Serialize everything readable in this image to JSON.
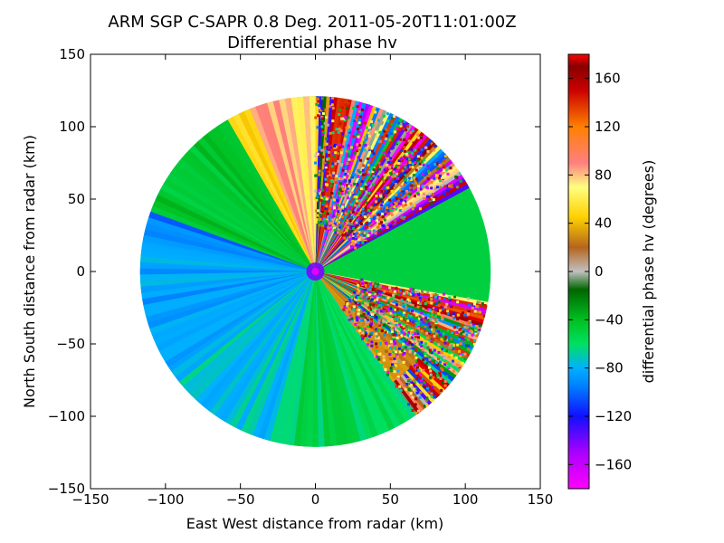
{
  "chart_data": {
    "type": "heatmap",
    "title": "ARM SGP C-SAPR 0.8 Deg. 2011-05-20T11:01:00Z",
    "subtitle": "Differential phase hv",
    "xlabel": "East West distance from radar (km)",
    "ylabel": "North South distance from radar (km)",
    "xlim": [
      -150,
      150
    ],
    "ylim": [
      -150,
      150
    ],
    "x_ticks": [
      -150,
      -100,
      -50,
      0,
      50,
      100,
      150
    ],
    "y_ticks": [
      -150,
      -100,
      -50,
      0,
      50,
      100,
      150
    ],
    "x_tick_labels": [
      "−150",
      "−100",
      "−50",
      "0",
      "50",
      "100",
      "150"
    ],
    "y_tick_labels": [
      "−150",
      "−100",
      "−50",
      "0",
      "50",
      "100",
      "150"
    ],
    "max_range_km": 117,
    "grid": false,
    "colorbar": {
      "label": "differential phase hv (degrees)",
      "range": [
        -180,
        180
      ],
      "ticks": [
        -160,
        -120,
        -80,
        -40,
        0,
        40,
        80,
        120,
        160
      ],
      "tick_labels": [
        "−160",
        "−120",
        "−80",
        "−40",
        "0",
        "40",
        "80",
        "120",
        "160"
      ],
      "colormap_stops": [
        {
          "value": -180,
          "color": "#ff00ff"
        },
        {
          "value": -150,
          "color": "#aa00ff"
        },
        {
          "value": -120,
          "color": "#1010ff"
        },
        {
          "value": -95,
          "color": "#0080ff"
        },
        {
          "value": -80,
          "color": "#00b0ff"
        },
        {
          "value": -60,
          "color": "#00e060"
        },
        {
          "value": -40,
          "color": "#00c020"
        },
        {
          "value": -15,
          "color": "#006600"
        },
        {
          "value": 0,
          "color": "#c0c0c0"
        },
        {
          "value": 20,
          "color": "#b5651d"
        },
        {
          "value": 45,
          "color": "#ffd000"
        },
        {
          "value": 70,
          "color": "#ffff80"
        },
        {
          "value": 90,
          "color": "#ff8080"
        },
        {
          "value": 120,
          "color": "#ff8000"
        },
        {
          "value": 150,
          "color": "#cc0000"
        },
        {
          "value": 170,
          "color": "#880000"
        },
        {
          "value": 180,
          "color": "#ff0000"
        }
      ]
    },
    "sectors": [
      {
        "az_from": 225,
        "az_to": 300,
        "value": -85,
        "range_km": 117
      },
      {
        "az_from": 280,
        "az_to": 305,
        "value": -95,
        "range_km": 117
      },
      {
        "az_from": 290,
        "az_to": 330,
        "value": -45,
        "range_km": 117
      },
      {
        "az_from": 330,
        "az_to": 345,
        "value": 45,
        "range_km": 117
      },
      {
        "az_from": 338,
        "az_to": 352,
        "value": 85,
        "range_km": 117
      },
      {
        "az_from": 352,
        "az_to": 360,
        "value": 70,
        "range_km": 117
      },
      {
        "az_from": 360,
        "az_to": 420,
        "value": 0,
        "range_km": 117,
        "noise": true
      },
      {
        "az_from": 100,
        "az_to": 145,
        "value": 0,
        "range_km": 117,
        "noise": true
      },
      {
        "az_from": 130,
        "az_to": 150,
        "value": 30,
        "range_km": 90
      },
      {
        "az_from": 145,
        "az_to": 225,
        "value": -55,
        "range_km": 117
      },
      {
        "az_from": 195,
        "az_to": 235,
        "value": -75,
        "range_km": 117
      }
    ]
  }
}
